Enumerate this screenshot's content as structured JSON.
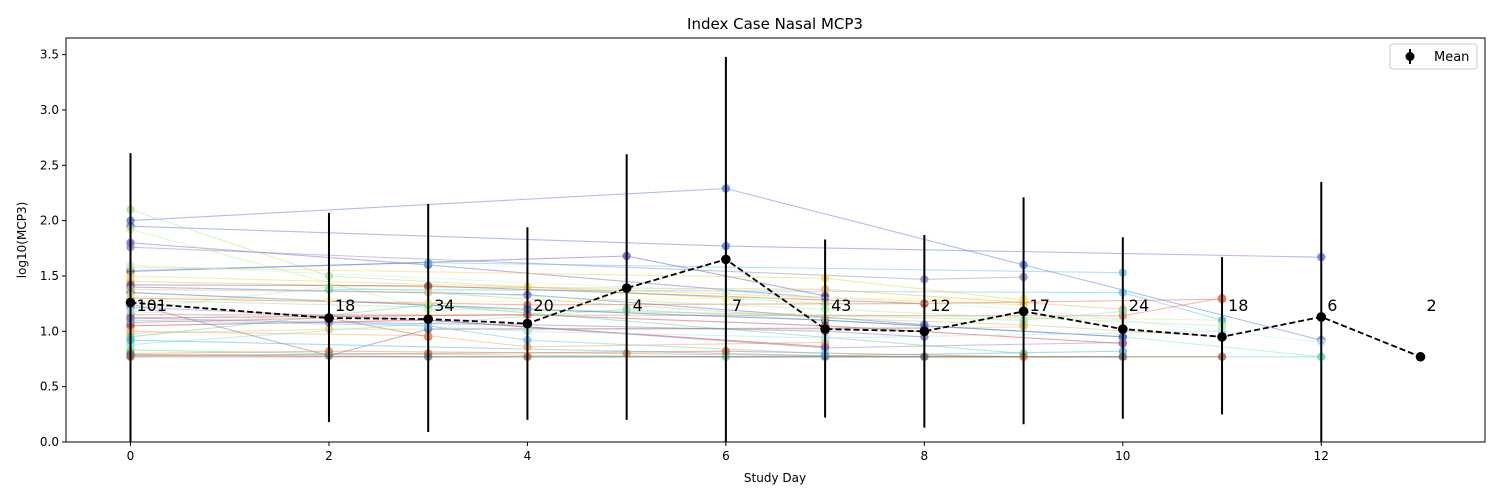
{
  "chart_data": {
    "type": "line",
    "title": "Index Case Nasal MCP3",
    "xlabel": "Study Day",
    "ylabel": "log10(MCP3)",
    "xlim": [
      -0.65,
      13.65
    ],
    "ylim": [
      0,
      3.65
    ],
    "xticks": [
      0,
      2,
      4,
      6,
      8,
      10,
      12
    ],
    "yticks": [
      0.0,
      0.5,
      1.0,
      1.5,
      2.0,
      2.5,
      3.0,
      3.5
    ],
    "grid": false,
    "legend": {
      "position": "top-right",
      "entries": [
        "Mean"
      ]
    },
    "mean_series": {
      "name": "Mean",
      "color": "#000000",
      "linestyle": "dashed",
      "x": [
        0,
        2,
        3,
        4,
        5,
        6,
        7,
        8,
        9,
        10,
        11,
        12,
        13
      ],
      "y": [
        1.26,
        1.12,
        1.11,
        1.07,
        1.39,
        1.65,
        1.02,
        1.0,
        1.18,
        1.02,
        0.95,
        1.13,
        0.77
      ],
      "error_low": [
        0.0,
        0.18,
        0.09,
        0.2,
        0.2,
        0.0,
        0.22,
        0.13,
        0.16,
        0.21,
        0.25,
        0.0,
        0.77
      ],
      "error_high": [
        2.61,
        2.07,
        2.15,
        1.94,
        2.6,
        3.48,
        1.83,
        1.87,
        2.21,
        1.85,
        1.67,
        2.35,
        0.77
      ]
    },
    "counts": [
      {
        "x": 0,
        "label": "101"
      },
      {
        "x": 2,
        "label": "18"
      },
      {
        "x": 3,
        "label": "34"
      },
      {
        "x": 4,
        "label": "20"
      },
      {
        "x": 5,
        "label": "4"
      },
      {
        "x": 6,
        "label": "7"
      },
      {
        "x": 7,
        "label": "43"
      },
      {
        "x": 8,
        "label": "12"
      },
      {
        "x": 9,
        "label": "17"
      },
      {
        "x": 10,
        "label": "24"
      },
      {
        "x": 11,
        "label": "18"
      },
      {
        "x": 12,
        "label": "6"
      },
      {
        "x": 13,
        "label": "2"
      }
    ],
    "count_label_y": 1.24,
    "individual_series": [
      {
        "color": "#4c6fe0",
        "x": [
          0,
          6,
          9,
          12
        ],
        "y": [
          2.0,
          2.29,
          1.6,
          0.92
        ]
      },
      {
        "color": "#4c6fe0",
        "x": [
          0,
          6,
          12
        ],
        "y": [
          1.95,
          1.77,
          1.67
        ]
      },
      {
        "color": "#6a5acd",
        "x": [
          0,
          3,
          7
        ],
        "y": [
          1.8,
          1.6,
          1.3
        ]
      },
      {
        "color": "#8a7bbf",
        "x": [
          0,
          8,
          9
        ],
        "y": [
          1.76,
          1.47,
          1.49
        ]
      },
      {
        "color": "#b2e07a",
        "x": [
          0,
          2,
          7
        ],
        "y": [
          2.1,
          1.5,
          1.25
        ]
      },
      {
        "color": "#c8f08a",
        "x": [
          0,
          3,
          11
        ],
        "y": [
          1.92,
          1.2,
          1.1
        ]
      },
      {
        "color": "#40c8f0",
        "x": [
          0,
          3,
          10
        ],
        "y": [
          1.55,
          1.62,
          1.53
        ]
      },
      {
        "color": "#40c8f0",
        "x": [
          2,
          10,
          11
        ],
        "y": [
          1.38,
          1.35,
          1.1
        ]
      },
      {
        "color": "#5a4fb8",
        "x": [
          0,
          5,
          7
        ],
        "y": [
          1.54,
          1.68,
          1.32
        ]
      },
      {
        "color": "#f0d040",
        "x": [
          0,
          7,
          9
        ],
        "y": [
          1.58,
          1.48,
          1.28
        ]
      },
      {
        "color": "#f0d040",
        "x": [
          0,
          4,
          9
        ],
        "y": [
          1.5,
          1.4,
          1.24
        ]
      },
      {
        "color": "#e8b050",
        "x": [
          0,
          3,
          7,
          10
        ],
        "y": [
          1.45,
          1.4,
          1.38,
          1.2
        ]
      },
      {
        "color": "#9a4a4a",
        "x": [
          0,
          3,
          8
        ],
        "y": [
          1.42,
          1.41,
          1.25
        ]
      },
      {
        "color": "#5060d8",
        "x": [
          0,
          4,
          8
        ],
        "y": [
          1.4,
          1.33,
          1.06
        ]
      },
      {
        "color": "#e06040",
        "x": [
          0,
          4,
          8,
          11
        ],
        "y": [
          1.3,
          1.24,
          1.25,
          1.29
        ]
      },
      {
        "color": "#f07050",
        "x": [
          0,
          10,
          11
        ],
        "y": [
          1.15,
          1.14,
          1.3
        ]
      },
      {
        "color": "#d03030",
        "x": [
          0,
          4,
          7,
          10
        ],
        "y": [
          1.12,
          1.15,
          1.05,
          0.89
        ]
      },
      {
        "color": "#c02828",
        "x": [
          0,
          3,
          7
        ],
        "y": [
          1.05,
          1.1,
          0.86
        ]
      },
      {
        "color": "#e05030",
        "x": [
          0,
          2,
          3
        ],
        "y": [
          1.08,
          1.12,
          0.95
        ]
      },
      {
        "color": "#f0a040",
        "x": [
          0,
          3,
          4,
          7
        ],
        "y": [
          1.0,
          0.96,
          0.86,
          0.9
        ]
      },
      {
        "color": "#f0c060",
        "x": [
          0,
          2,
          7,
          9
        ],
        "y": [
          0.98,
          1.02,
          1.02,
          1.04
        ]
      },
      {
        "color": "#50d890",
        "x": [
          0,
          2,
          6,
          12
        ],
        "y": [
          0.83,
          0.8,
          0.77,
          0.77
        ]
      },
      {
        "color": "#50d890",
        "x": [
          0,
          3,
          9
        ],
        "y": [
          0.95,
          1.24,
          0.8
        ]
      },
      {
        "color": "#70e8c0",
        "x": [
          0,
          5,
          10,
          12
        ],
        "y": [
          0.88,
          1.2,
          0.95,
          0.77
        ]
      },
      {
        "color": "#a0f0a0",
        "x": [
          0,
          2,
          7,
          11
        ],
        "y": [
          1.2,
          1.4,
          1.2,
          1.05
        ]
      },
      {
        "color": "#6a6aa0",
        "x": [
          0,
          2,
          3,
          8
        ],
        "y": [
          1.25,
          0.78,
          1.02,
          1.03
        ]
      },
      {
        "color": "#3050c0",
        "x": [
          0,
          4,
          7,
          10
        ],
        "y": [
          1.35,
          1.2,
          1.1,
          0.95
        ]
      },
      {
        "color": "#8080d0",
        "x": [
          0,
          3,
          7,
          10
        ],
        "y": [
          1.22,
          1.1,
          0.85,
          0.9
        ]
      },
      {
        "color": "#c0f0f0",
        "x": [
          0,
          6,
          9,
          12
        ],
        "y": [
          1.6,
          1.36,
          1.2,
          0.9
        ]
      },
      {
        "color": "#a0e0f0",
        "x": [
          0,
          4,
          7,
          11
        ],
        "y": [
          1.18,
          1.0,
          0.94,
          1.0
        ]
      },
      {
        "color": "#f8f080",
        "x": [
          0,
          2,
          3,
          6,
          9
        ],
        "y": [
          1.32,
          1.28,
          1.26,
          1.3,
          1.3
        ]
      },
      {
        "color": "#90e0b0",
        "x": [
          0,
          5,
          9,
          10
        ],
        "y": [
          1.28,
          1.18,
          1.1,
          1.18
        ]
      },
      {
        "color": "#b05030",
        "x": [
          0,
          4,
          7,
          11
        ],
        "y": [
          0.77,
          0.77,
          0.77,
          0.77
        ]
      },
      {
        "color": "#d06028",
        "x": [
          0,
          3,
          6,
          9
        ],
        "y": [
          0.78,
          0.8,
          0.82,
          0.77
        ]
      },
      {
        "color": "#e08040",
        "x": [
          0,
          2,
          5,
          8,
          10
        ],
        "y": [
          0.8,
          0.82,
          0.8,
          0.77,
          0.77
        ]
      },
      {
        "color": "#60c0f0",
        "x": [
          0,
          3,
          4,
          7
        ],
        "y": [
          1.1,
          1.05,
          0.92,
          0.8
        ]
      },
      {
        "color": "#40b0e0",
        "x": [
          0,
          7,
          10
        ],
        "y": [
          0.92,
          0.78,
          0.82
        ]
      },
      {
        "color": "#8070c0",
        "x": [
          0,
          2,
          4,
          7,
          8
        ],
        "y": [
          1.12,
          1.08,
          1.06,
          1.0,
          0.95
        ]
      },
      {
        "color": "#c8c070",
        "x": [
          0,
          3,
          7,
          9,
          11
        ],
        "y": [
          1.38,
          1.35,
          1.12,
          1.06,
          0.95
        ]
      },
      {
        "color": "#607080",
        "x": [
          0,
          3,
          8,
          10
        ],
        "y": [
          0.79,
          0.77,
          0.77,
          0.77
        ]
      }
    ]
  }
}
